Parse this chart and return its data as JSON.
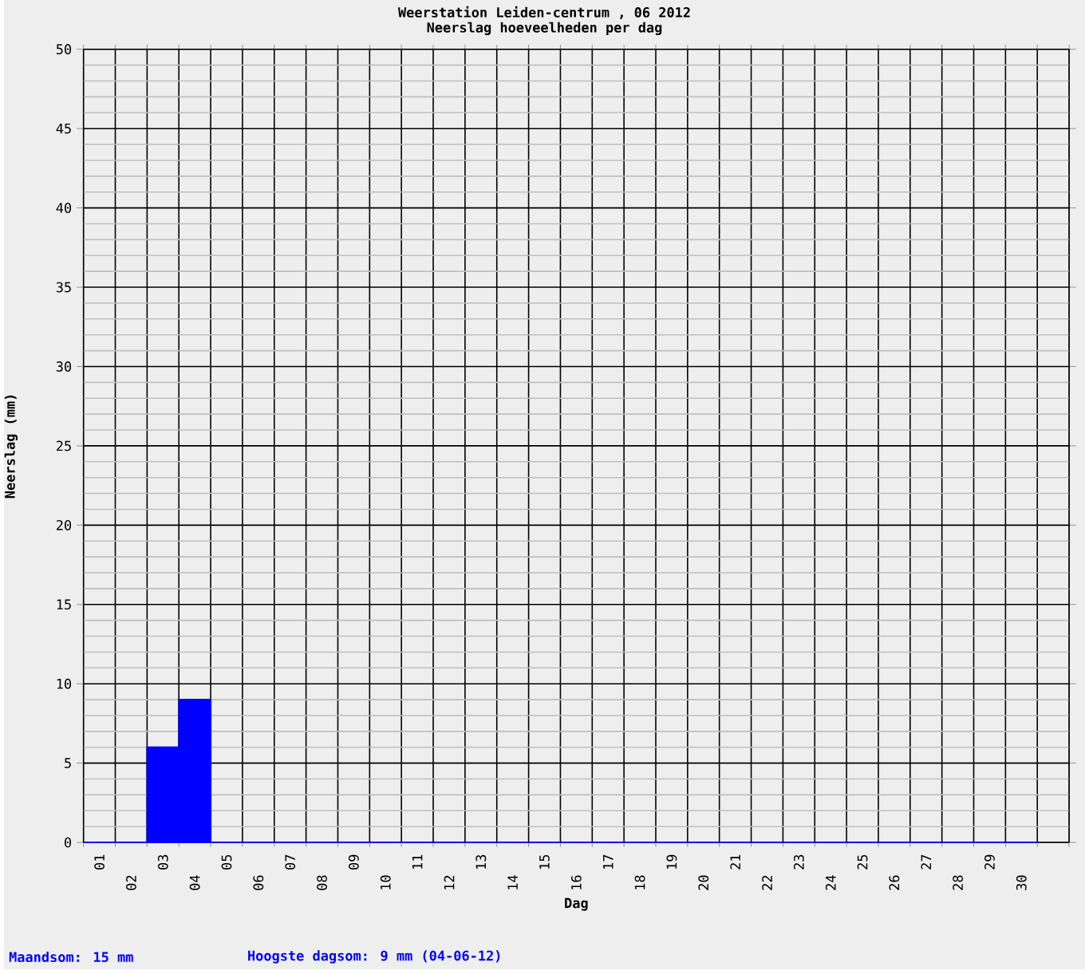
{
  "chart_data": {
    "type": "bar",
    "title": "Weerstation Leiden-centrum , 06 2012",
    "subtitle": "Neerslag hoeveelheden per dag",
    "xlabel": "Dag",
    "ylabel": "Neerslag (mm)",
    "categories": [
      "01",
      "02",
      "03",
      "04",
      "05",
      "06",
      "07",
      "08",
      "09",
      "10",
      "11",
      "12",
      "13",
      "14",
      "15",
      "16",
      "17",
      "18",
      "19",
      "20",
      "21",
      "22",
      "23",
      "24",
      "25",
      "26",
      "27",
      "28",
      "29",
      "30"
    ],
    "values": [
      0,
      0,
      6,
      9,
      0,
      0,
      0,
      0,
      0,
      0,
      0,
      0,
      0,
      0,
      0,
      0,
      0,
      0,
      0,
      0,
      0,
      0,
      0,
      0,
      0,
      0,
      0,
      0,
      0,
      0
    ],
    "color": "#0000ff",
    "ylim": [
      0,
      50
    ],
    "yticks": [
      0,
      5,
      10,
      15,
      20,
      25,
      30,
      35,
      40,
      45,
      50
    ],
    "grid": true,
    "annotations": [
      "Maandsom: 15 mm",
      "Hoogste dagsom: 9 mm (04-06-12)"
    ]
  }
}
